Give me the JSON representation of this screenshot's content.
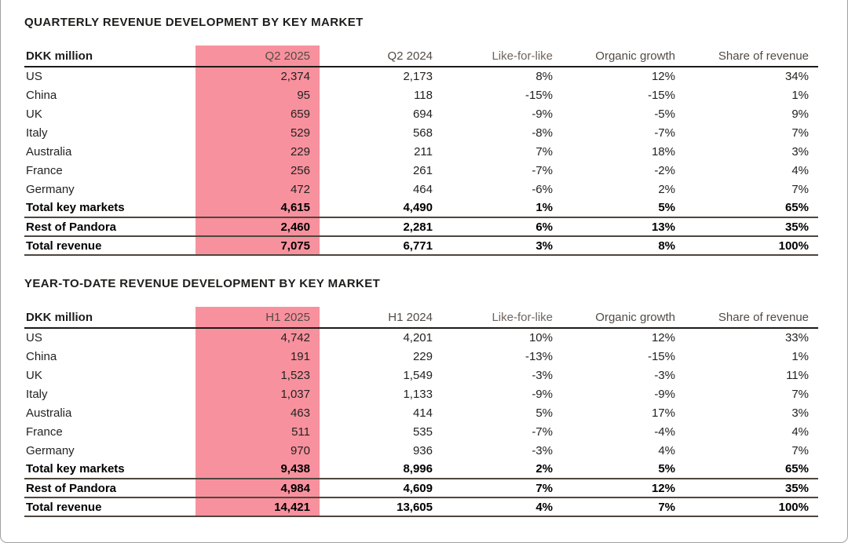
{
  "colors": {
    "highlight_pink": "#F8919E",
    "text_primary": "#232220",
    "text_bold": "#1d1d1b",
    "header_text": "#514b45",
    "header_muted": "#6e655c",
    "rule_dark": "#1d1b19",
    "rule_total": "#4e463e",
    "page_border": "#a0a0a0"
  },
  "tables": [
    {
      "title": "QUARTERLY REVENUE DEVELOPMENT BY KEY MARKET",
      "unit": "DKK million",
      "columns": [
        {
          "key": "market",
          "label": "DKK million"
        },
        {
          "key": "q2-2025",
          "label": "Q2 2025",
          "highlighted": true
        },
        {
          "key": "q2-2024",
          "label": "Q2 2024"
        },
        {
          "key": "like-for-like",
          "label": "Like-for-like",
          "muted": true
        },
        {
          "key": "organic-growth",
          "label": "Organic growth"
        },
        {
          "key": "share-of-revenue",
          "label": "Share of revenue"
        }
      ],
      "rows": [
        {
          "label": "US",
          "values": [
            "2,374",
            "2,173",
            "8%",
            "12%",
            "34%"
          ],
          "bold": false,
          "rule_below": false
        },
        {
          "label": "China",
          "values": [
            "95",
            "118",
            "-15%",
            "-15%",
            "1%"
          ],
          "bold": false,
          "rule_below": false
        },
        {
          "label": "UK",
          "values": [
            "659",
            "694",
            "-9%",
            "-5%",
            "9%"
          ],
          "bold": false,
          "rule_below": false
        },
        {
          "label": "Italy",
          "values": [
            "529",
            "568",
            "-8%",
            "-7%",
            "7%"
          ],
          "bold": false,
          "rule_below": false
        },
        {
          "label": "Australia",
          "values": [
            "229",
            "211",
            "7%",
            "18%",
            "3%"
          ],
          "bold": false,
          "rule_below": false
        },
        {
          "label": "France",
          "values": [
            "256",
            "261",
            "-7%",
            "-2%",
            "4%"
          ],
          "bold": false,
          "rule_below": false
        },
        {
          "label": "Germany",
          "values": [
            "472",
            "464",
            "-6%",
            "2%",
            "7%"
          ],
          "bold": false,
          "rule_below": false
        },
        {
          "label": "Total key markets",
          "values": [
            "4,615",
            "4,490",
            "1%",
            "5%",
            "65%"
          ],
          "bold": true,
          "rule_below": true
        },
        {
          "label": "Rest of Pandora",
          "values": [
            "2,460",
            "2,281",
            "6%",
            "13%",
            "35%"
          ],
          "bold": true,
          "rule_below": true
        },
        {
          "label": "Total revenue",
          "values": [
            "7,075",
            "6,771",
            "3%",
            "8%",
            "100%"
          ],
          "bold": true,
          "rule_below": true
        }
      ]
    },
    {
      "title": "YEAR-TO-DATE REVENUE DEVELOPMENT BY KEY MARKET",
      "unit": "DKK million",
      "columns": [
        {
          "key": "market",
          "label": "DKK million"
        },
        {
          "key": "h1-2025",
          "label": "H1 2025",
          "highlighted": true
        },
        {
          "key": "h1-2024",
          "label": "H1 2024"
        },
        {
          "key": "like-for-like",
          "label": "Like-for-like",
          "muted": true
        },
        {
          "key": "organic-growth",
          "label": "Organic growth"
        },
        {
          "key": "share-of-revenue",
          "label": "Share of revenue"
        }
      ],
      "rows": [
        {
          "label": "US",
          "values": [
            "4,742",
            "4,201",
            "10%",
            "12%",
            "33%"
          ],
          "bold": false,
          "rule_below": false
        },
        {
          "label": "China",
          "values": [
            "191",
            "229",
            "-13%",
            "-15%",
            "1%"
          ],
          "bold": false,
          "rule_below": false
        },
        {
          "label": "UK",
          "values": [
            "1,523",
            "1,549",
            "-3%",
            "-3%",
            "11%"
          ],
          "bold": false,
          "rule_below": false
        },
        {
          "label": "Italy",
          "values": [
            "1,037",
            "1,133",
            "-9%",
            "-9%",
            "7%"
          ],
          "bold": false,
          "rule_below": false
        },
        {
          "label": "Australia",
          "values": [
            "463",
            "414",
            "5%",
            "17%",
            "3%"
          ],
          "bold": false,
          "rule_below": false
        },
        {
          "label": "France",
          "values": [
            "511",
            "535",
            "-7%",
            "-4%",
            "4%"
          ],
          "bold": false,
          "rule_below": false
        },
        {
          "label": "Germany",
          "values": [
            "970",
            "936",
            "-3%",
            "4%",
            "7%"
          ],
          "bold": false,
          "rule_below": false
        },
        {
          "label": "Total key markets",
          "values": [
            "9,438",
            "8,996",
            "2%",
            "5%",
            "65%"
          ],
          "bold": true,
          "rule_below": true
        },
        {
          "label": "Rest of Pandora",
          "values": [
            "4,984",
            "4,609",
            "7%",
            "12%",
            "35%"
          ],
          "bold": true,
          "rule_below": true
        },
        {
          "label": "Total revenue",
          "values": [
            "14,421",
            "13,605",
            "4%",
            "7%",
            "100%"
          ],
          "bold": true,
          "rule_below": true
        }
      ]
    }
  ]
}
